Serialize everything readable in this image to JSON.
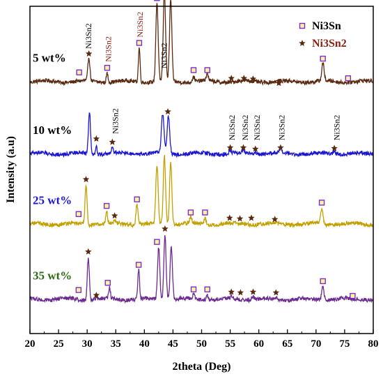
{
  "chart_data": {
    "type": "line",
    "xlabel": "2theta (Deg)",
    "ylabel": "Intensity (a.u)",
    "xlim": [
      20,
      80
    ],
    "xticks": [
      20,
      25,
      30,
      35,
      40,
      45,
      50,
      55,
      60,
      65,
      70,
      75,
      80
    ],
    "xtick_labels": [
      "20",
      "25",
      "30",
      "35",
      "40",
      "45",
      "50",
      "55",
      "60",
      "65",
      "70",
      "75",
      "80"
    ],
    "grid": false,
    "legend": {
      "placement": "top-right",
      "entries": [
        {
          "label": "Ni3Sn",
          "marker": "square",
          "label_color": "#000000",
          "marker_color": "#7b2ccf"
        },
        {
          "label": "Ni3Sn2",
          "marker": "star",
          "label_color": "#8b2010",
          "marker_color": "#5a2a10"
        }
      ]
    },
    "series": [
      {
        "name": "5 wt%",
        "label_color": "#000000",
        "color": "#5a2a10",
        "baseline": 0.77,
        "peaks": [
          {
            "x": 30.3,
            "h": 0.072,
            "w": 0.35
          },
          {
            "x": 33.5,
            "h": 0.028,
            "w": 0.3
          },
          {
            "x": 39.1,
            "h": 0.105,
            "w": 0.3
          },
          {
            "x": 42.2,
            "h": 0.24,
            "w": 0.4
          },
          {
            "x": 43.5,
            "h": 0.28,
            "w": 0.4
          },
          {
            "x": 44.6,
            "h": 0.25,
            "w": 0.4
          },
          {
            "x": 48.6,
            "h": 0.015,
            "w": 0.4
          },
          {
            "x": 51.0,
            "h": 0.02,
            "w": 0.4
          },
          {
            "x": 71.2,
            "h": 0.055,
            "w": 0.4
          }
        ],
        "phase_markers": [
          {
            "x": 28.6,
            "dy": 0.028,
            "kind": "square"
          },
          {
            "x": 30.3,
            "dy": 0.085,
            "kind": "star"
          },
          {
            "x": 33.5,
            "dy": 0.042,
            "kind": "square"
          },
          {
            "x": 39.1,
            "dy": 0.118,
            "kind": "square"
          },
          {
            "x": 42.2,
            "dy": 0.255,
            "kind": "square"
          },
          {
            "x": 43.5,
            "dy": 0.297,
            "kind": "star"
          },
          {
            "x": 44.8,
            "dy": 0.262,
            "kind": "square"
          },
          {
            "x": 48.6,
            "dy": 0.035,
            "kind": "square"
          },
          {
            "x": 51.0,
            "dy": 0.035,
            "kind": "square"
          },
          {
            "x": 55.2,
            "dy": 0.01,
            "kind": "star"
          },
          {
            "x": 57.4,
            "dy": 0.01,
            "kind": "star"
          },
          {
            "x": 59.0,
            "dy": 0.008,
            "kind": "star"
          },
          {
            "x": 63.5,
            "dy": -0.005,
            "kind": "star"
          },
          {
            "x": 71.2,
            "dy": 0.07,
            "kind": "square"
          },
          {
            "x": 75.6,
            "dy": 0.01,
            "kind": "square"
          }
        ],
        "annotations": [
          {
            "text": "Ni3Sn2",
            "x": 30.2,
            "dy": 0.1,
            "color": "#000000"
          },
          {
            "text": "Ni3Sn2",
            "x": 33.7,
            "dy": 0.06,
            "color": "#8b2010"
          },
          {
            "text": "Ni3Sn2",
            "x": 39.2,
            "dy": 0.135,
            "color": "#8b2010"
          },
          {
            "text": "Ni3Sn2",
            "x": 43.4,
            "dy": 0.04,
            "color": "#000000"
          }
        ]
      },
      {
        "name": "10 wt%",
        "label_color": "#000000",
        "color": "#1a16d4",
        "baseline": 0.55,
        "peaks": [
          {
            "x": 30.4,
            "h": 0.13,
            "w": 0.35
          },
          {
            "x": 31.6,
            "h": 0.03,
            "w": 0.25
          },
          {
            "x": 34.4,
            "h": 0.02,
            "w": 0.3
          },
          {
            "x": 43.2,
            "h": 0.12,
            "w": 0.45
          },
          {
            "x": 44.2,
            "h": 0.115,
            "w": 0.45
          },
          {
            "x": 55.0,
            "h": 0.01,
            "w": 0.4
          },
          {
            "x": 57.3,
            "h": 0.01,
            "w": 0.4
          },
          {
            "x": 59.4,
            "h": 0.008,
            "w": 0.4
          },
          {
            "x": 63.8,
            "h": 0.01,
            "w": 0.4
          },
          {
            "x": 73.2,
            "h": 0.008,
            "w": 0.5
          }
        ],
        "phase_markers": [
          {
            "x": 31.6,
            "dy": 0.045,
            "kind": "star"
          },
          {
            "x": 34.4,
            "dy": 0.035,
            "kind": "star"
          },
          {
            "x": 44.1,
            "dy": 0.128,
            "kind": "star"
          },
          {
            "x": 55.0,
            "dy": 0.018,
            "kind": "star"
          },
          {
            "x": 57.3,
            "dy": 0.018,
            "kind": "star"
          },
          {
            "x": 59.4,
            "dy": 0.014,
            "kind": "star"
          },
          {
            "x": 63.8,
            "dy": 0.018,
            "kind": "star"
          },
          {
            "x": 73.2,
            "dy": 0.016,
            "kind": "star"
          }
        ],
        "annotations": [
          {
            "text": "Ni3Sn2",
            "x": 34.9,
            "dy": 0.06,
            "color": "#000000"
          },
          {
            "text": "Ni3Sn2",
            "x": 55.3,
            "dy": 0.04,
            "color": "#000000"
          },
          {
            "text": "Ni3Sn2",
            "x": 57.6,
            "dy": 0.04,
            "color": "#000000"
          },
          {
            "text": "Ni3Sn2",
            "x": 59.7,
            "dy": 0.04,
            "color": "#000000"
          },
          {
            "text": "Ni3Sn2",
            "x": 64.0,
            "dy": 0.04,
            "color": "#000000"
          },
          {
            "text": "Ni3Sn2",
            "x": 73.6,
            "dy": 0.04,
            "color": "#000000"
          }
        ]
      },
      {
        "name": "25 wt%",
        "label_color": "#1a16d4",
        "color": "#c2a000",
        "baseline": 0.335,
        "peaks": [
          {
            "x": 29.8,
            "h": 0.12,
            "w": 0.35
          },
          {
            "x": 33.4,
            "h": 0.04,
            "w": 0.3
          },
          {
            "x": 34.8,
            "h": 0.01,
            "w": 0.3
          },
          {
            "x": 38.7,
            "h": 0.06,
            "w": 0.35
          },
          {
            "x": 42.2,
            "h": 0.18,
            "w": 0.4
          },
          {
            "x": 43.5,
            "h": 0.21,
            "w": 0.4
          },
          {
            "x": 44.6,
            "h": 0.19,
            "w": 0.4
          },
          {
            "x": 48.1,
            "h": 0.02,
            "w": 0.35
          },
          {
            "x": 50.6,
            "h": 0.02,
            "w": 0.35
          },
          {
            "x": 71.0,
            "h": 0.05,
            "w": 0.4
          }
        ],
        "phase_markers": [
          {
            "x": 28.5,
            "dy": 0.03,
            "kind": "square"
          },
          {
            "x": 29.8,
            "dy": 0.136,
            "kind": "star"
          },
          {
            "x": 33.4,
            "dy": 0.055,
            "kind": "square"
          },
          {
            "x": 34.8,
            "dy": 0.025,
            "kind": "star"
          },
          {
            "x": 38.7,
            "dy": 0.075,
            "kind": "square"
          },
          {
            "x": 48.1,
            "dy": 0.035,
            "kind": "square"
          },
          {
            "x": 50.6,
            "dy": 0.035,
            "kind": "square"
          },
          {
            "x": 54.9,
            "dy": 0.018,
            "kind": "star"
          },
          {
            "x": 56.7,
            "dy": 0.016,
            "kind": "star"
          },
          {
            "x": 58.7,
            "dy": 0.018,
            "kind": "star"
          },
          {
            "x": 62.8,
            "dy": 0.014,
            "kind": "star"
          },
          {
            "x": 71.0,
            "dy": 0.065,
            "kind": "square"
          }
        ],
        "annotations": []
      },
      {
        "name": "35 wt%",
        "label_color": "#2b6b12",
        "color": "#6a2a8e",
        "baseline": 0.105,
        "peaks": [
          {
            "x": 30.2,
            "h": 0.13,
            "w": 0.35
          },
          {
            "x": 31.6,
            "h": 0.005,
            "w": 0.3
          },
          {
            "x": 33.9,
            "h": 0.035,
            "w": 0.3
          },
          {
            "x": 39.0,
            "h": 0.09,
            "w": 0.3
          },
          {
            "x": 42.5,
            "h": 0.16,
            "w": 0.4
          },
          {
            "x": 43.6,
            "h": 0.2,
            "w": 0.4
          },
          {
            "x": 44.7,
            "h": 0.16,
            "w": 0.4
          },
          {
            "x": 48.6,
            "h": 0.015,
            "w": 0.35
          },
          {
            "x": 51.0,
            "h": 0.015,
            "w": 0.35
          },
          {
            "x": 55.2,
            "h": 0.01,
            "w": 0.35
          },
          {
            "x": 59.0,
            "h": 0.01,
            "w": 0.35
          },
          {
            "x": 63.0,
            "h": 0.008,
            "w": 0.35
          },
          {
            "x": 71.2,
            "h": 0.04,
            "w": 0.4
          }
        ],
        "phase_markers": [
          {
            "x": 28.5,
            "dy": 0.028,
            "kind": "square"
          },
          {
            "x": 30.2,
            "dy": 0.145,
            "kind": "star"
          },
          {
            "x": 31.6,
            "dy": 0.012,
            "kind": "star"
          },
          {
            "x": 33.6,
            "dy": 0.05,
            "kind": "square"
          },
          {
            "x": 39.0,
            "dy": 0.105,
            "kind": "square"
          },
          {
            "x": 42.2,
            "dy": 0.175,
            "kind": "square"
          },
          {
            "x": 43.6,
            "dy": 0.215,
            "kind": "star"
          },
          {
            "x": 48.6,
            "dy": 0.03,
            "kind": "square"
          },
          {
            "x": 51.0,
            "dy": 0.03,
            "kind": "square"
          },
          {
            "x": 55.2,
            "dy": 0.022,
            "kind": "star"
          },
          {
            "x": 56.8,
            "dy": 0.02,
            "kind": "star"
          },
          {
            "x": 59.0,
            "dy": 0.022,
            "kind": "star"
          },
          {
            "x": 63.0,
            "dy": 0.02,
            "kind": "star"
          },
          {
            "x": 71.2,
            "dy": 0.055,
            "kind": "square"
          },
          {
            "x": 76.4,
            "dy": 0.01,
            "kind": "square"
          }
        ],
        "annotations": []
      }
    ]
  }
}
